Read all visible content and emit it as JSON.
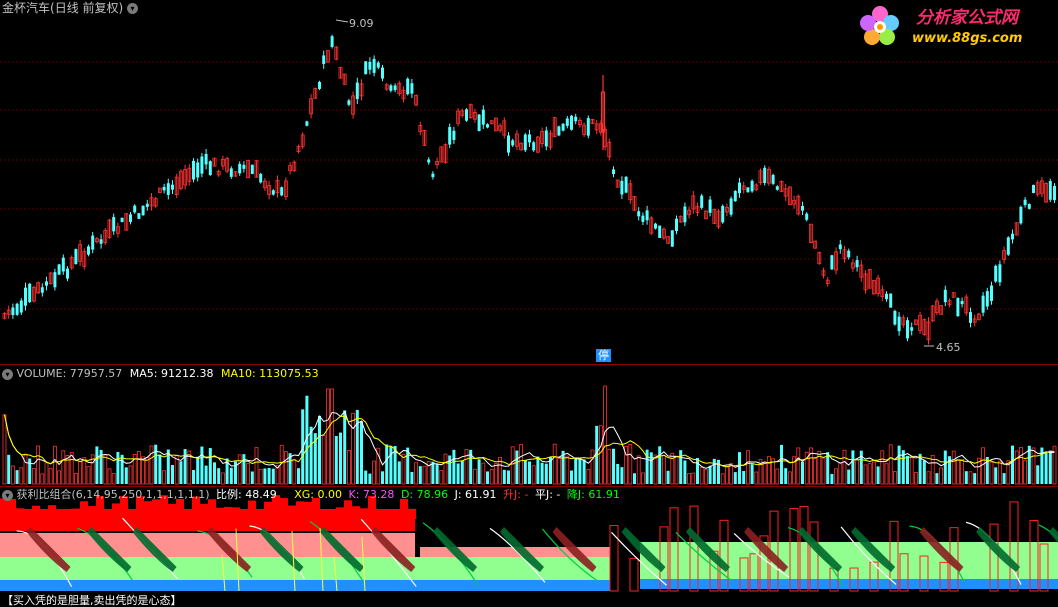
{
  "header": {
    "stock_name": "金杯汽车",
    "period": "(日线 前复权)",
    "high_label": "9.09",
    "low_label": "4.65",
    "halt_marker": "停"
  },
  "watermark": {
    "title": "分析家公式网",
    "url": "www.88gs.com"
  },
  "volume": {
    "title": "VOLUME: 77957.57",
    "ma5": "MA5: 91212.38",
    "ma10": "MA10: 113075.53"
  },
  "indicator": {
    "title": "获利比组合(6,14,95,250,1,1,1,1,1,1)",
    "ratio": "比例: 48.49",
    "xg": "XG: 0.00",
    "k": "K: 73.28",
    "d": "D: 78.96",
    "j": "J: 61.91",
    "up_j": "升J: -",
    "flat_j": "平J: -",
    "down_j": "降J: 61.91"
  },
  "footer": {
    "motto": "【买入凭的是胆量,卖出凭的是心态】"
  },
  "colors": {
    "up": "#ff3232",
    "down": "#54ffff",
    "ma5": "#ffffff",
    "ma10": "#ffff00",
    "k": "#ff50ff",
    "d": "#00ff00",
    "j": "#ffffff",
    "up_j": "#ff3232",
    "down_j": "#00ff00",
    "band_red": "#ff0000",
    "band_pink": "#ff9090",
    "band_green": "#90ff90",
    "band_blue": "#1e90ff"
  },
  "icons": {
    "menu": "chevron-down-icon",
    "flower": "flower-logo-icon"
  }
}
